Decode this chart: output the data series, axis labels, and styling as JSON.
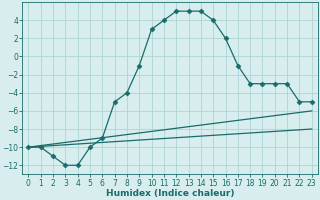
{
  "xlabel": "Humidex (Indice chaleur)",
  "ylabel": "",
  "background_color": "#d8eeee",
  "grid_color": "#aed4d4",
  "line_color": "#1a6b6b",
  "xlim": [
    -0.5,
    23.5
  ],
  "ylim": [
    -13,
    6
  ],
  "xticks": [
    0,
    1,
    2,
    3,
    4,
    5,
    6,
    7,
    8,
    9,
    10,
    11,
    12,
    13,
    14,
    15,
    16,
    17,
    18,
    19,
    20,
    21,
    22,
    23
  ],
  "yticks": [
    -12,
    -10,
    -8,
    -6,
    -4,
    -2,
    0,
    2,
    4
  ],
  "curve1_x": [
    0,
    1,
    2,
    3,
    4,
    5,
    6,
    7,
    8,
    9,
    10,
    11,
    12,
    13,
    14,
    15,
    16,
    17,
    18,
    19,
    20,
    21,
    22,
    23
  ],
  "curve1_y": [
    -10,
    -10,
    -11,
    -12,
    -12,
    -10,
    -9,
    -5,
    -4,
    -1,
    3,
    4,
    5,
    5,
    5,
    4,
    2,
    -1,
    -3,
    -3,
    -3,
    -3,
    -5,
    -5
  ],
  "curve2_x": [
    0,
    23
  ],
  "curve2_y": [
    -10,
    -6
  ],
  "curve3_x": [
    0,
    23
  ],
  "curve3_y": [
    -10,
    -8
  ],
  "marker": "D",
  "markersize": 2.5,
  "linewidth": 0.9,
  "tick_fontsize": 5.5,
  "xlabel_fontsize": 6.5
}
